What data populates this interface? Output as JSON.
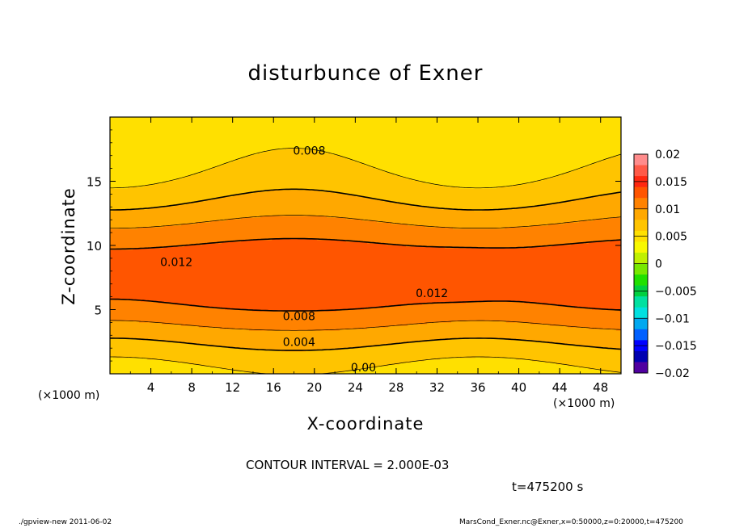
{
  "chart_data": {
    "type": "contour",
    "title": "disturbunce of Exner",
    "xlabel": "X-coordinate",
    "ylabel": "Z-coordinate",
    "x_unit": "(×1000 m)",
    "y_unit": "(×1000 m)",
    "xlim": [
      0,
      50
    ],
    "ylim": [
      0,
      20
    ],
    "x_ticks": [
      4,
      8,
      12,
      16,
      20,
      24,
      28,
      32,
      36,
      40,
      44,
      48
    ],
    "y_ticks": [
      5,
      10,
      15
    ],
    "colorbar": {
      "levels": [
        0.02,
        0.015,
        0.01,
        0.005,
        0,
        -0.005,
        -0.01,
        -0.015,
        -0.02
      ],
      "labels": [
        "0.02",
        "0.015",
        "0.01",
        "0.005",
        "0",
        "−0.005",
        "−0.01",
        "−0.015",
        "−0.02"
      ],
      "colors_top_to_bottom": [
        "#ff8c8c",
        "#ff5a48",
        "#ff2810",
        "#ff5500",
        "#ff8200",
        "#ffa800",
        "#ffc400",
        "#ffe000",
        "#f8f800",
        "#c0f000",
        "#78e800",
        "#20e000",
        "#00d040",
        "#00e0a0",
        "#00e0e0",
        "#00a8f0",
        "#0060ff",
        "#0000ff",
        "#0000b0",
        "#5000a0"
      ]
    },
    "contour_labels": [
      {
        "text": "0.008",
        "x": 19.5,
        "z": 17.4
      },
      {
        "text": "0.012",
        "x": 6.5,
        "z": 8.7
      },
      {
        "text": "0.012",
        "x": 31.5,
        "z": 6.3
      },
      {
        "text": "0.008",
        "x": 18.5,
        "z": 4.5
      },
      {
        "text": "0.004",
        "x": 18.5,
        "z": 2.5
      },
      {
        "text": "0.00",
        "x": 24.8,
        "z": 0.5
      }
    ]
  },
  "annotations": {
    "contour_interval": "CONTOUR INTERVAL = 2.000E-03",
    "time": "t=475200 s",
    "footer_left": "./gpview-new   2011-06-02",
    "footer_right": "MarsCond_Exner.nc@Exner,x=0:50000,z=0:20000,t=475200"
  }
}
